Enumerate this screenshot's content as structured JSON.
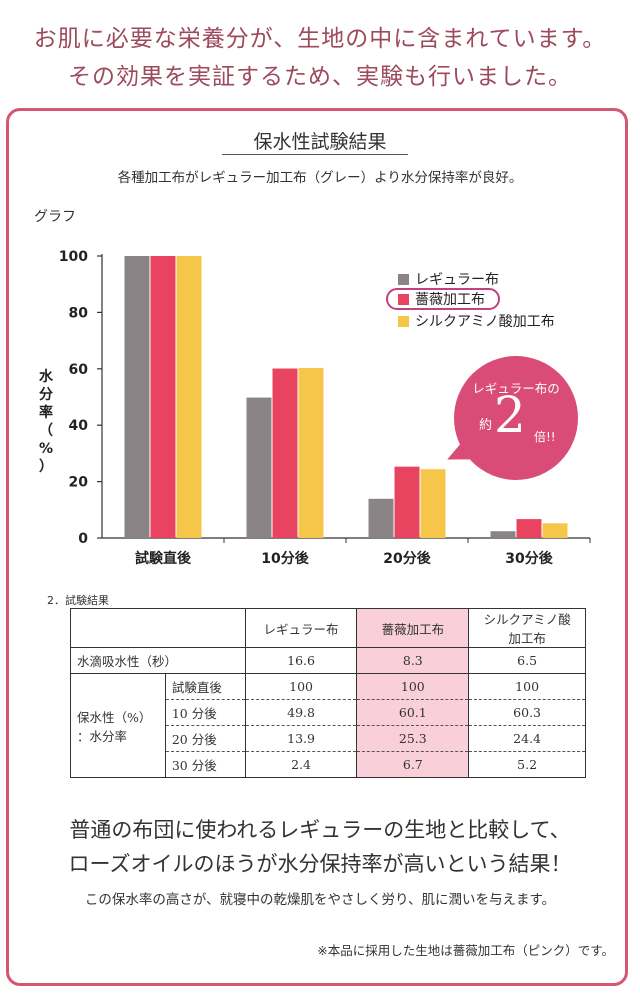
{
  "headline": {
    "line1": "お肌に必要な栄養分が、生地の中に含まれています。",
    "line2": "その効果を実証するため、実験も行いました。"
  },
  "section": {
    "title": "保水性試験結果",
    "subtitle": "各種加工布がレギュラー加工布（グレー）より水分保持率が良好。",
    "graph_label": "グラフ"
  },
  "colors": {
    "gray": "#8a8486",
    "pink": "#e8445f",
    "yellow": "#f6c64b",
    "accent": "#d94c77",
    "border": "#d75574"
  },
  "chart_data": {
    "type": "bar",
    "categories": [
      "試験直後",
      "10分後",
      "20分後",
      "30分後"
    ],
    "series": [
      {
        "name": "レギュラー布",
        "values": [
          100,
          49.8,
          13.9,
          2.4
        ]
      },
      {
        "name": "薔薇加工布",
        "values": [
          100,
          60.1,
          25.3,
          6.7
        ]
      },
      {
        "name": "シルクアミノ酸加工布",
        "values": [
          100,
          60.3,
          24.4,
          5.2
        ]
      }
    ],
    "ylabel_chars": [
      "水",
      "分",
      "率",
      "（",
      "%",
      "）"
    ],
    "ylim": [
      0,
      100
    ],
    "yticks": [
      0,
      20,
      40,
      60,
      80,
      100
    ],
    "legend_position": "top-right",
    "grid": false
  },
  "callout": {
    "line1": "レギュラー布の",
    "prefix": "約",
    "number": "2",
    "suffix": "倍!!"
  },
  "table": {
    "caption": "2．試験結果",
    "headers": [
      "レギュラー布",
      "薔薇加工布",
      "シルクアミノ酸加工布"
    ],
    "header3_line1": "シルクアミノ酸",
    "header3_line2": "加工布",
    "row_water": {
      "label": "水滴吸水性（秒）",
      "values": [
        "16.6",
        "8.3",
        "6.5"
      ]
    },
    "retention_label_1": "保水性（%）",
    "retention_label_2": "：水分率",
    "retention_rows": [
      {
        "label": "試験直後",
        "values": [
          "100",
          "100",
          "100"
        ]
      },
      {
        "label": "10 分後",
        "values": [
          "49.8",
          "60.1",
          "60.3"
        ]
      },
      {
        "label": "20 分後",
        "values": [
          "13.9",
          "25.3",
          "24.4"
        ]
      },
      {
        "label": "30 分後",
        "values": [
          "2.4",
          "6.7",
          "5.2"
        ]
      }
    ]
  },
  "summary": {
    "line1": "普通の布団に使われるレギュラーの生地と比較して、",
    "line2": "ローズオイルのほうが水分保持率が高いという結果！",
    "line3": "この保水率の高さが、就寝中の乾燥肌をやさしく労り、肌に潤いを与えます。",
    "note": "※本品に採用した生地は薔薇加工布（ピンク）です。"
  }
}
